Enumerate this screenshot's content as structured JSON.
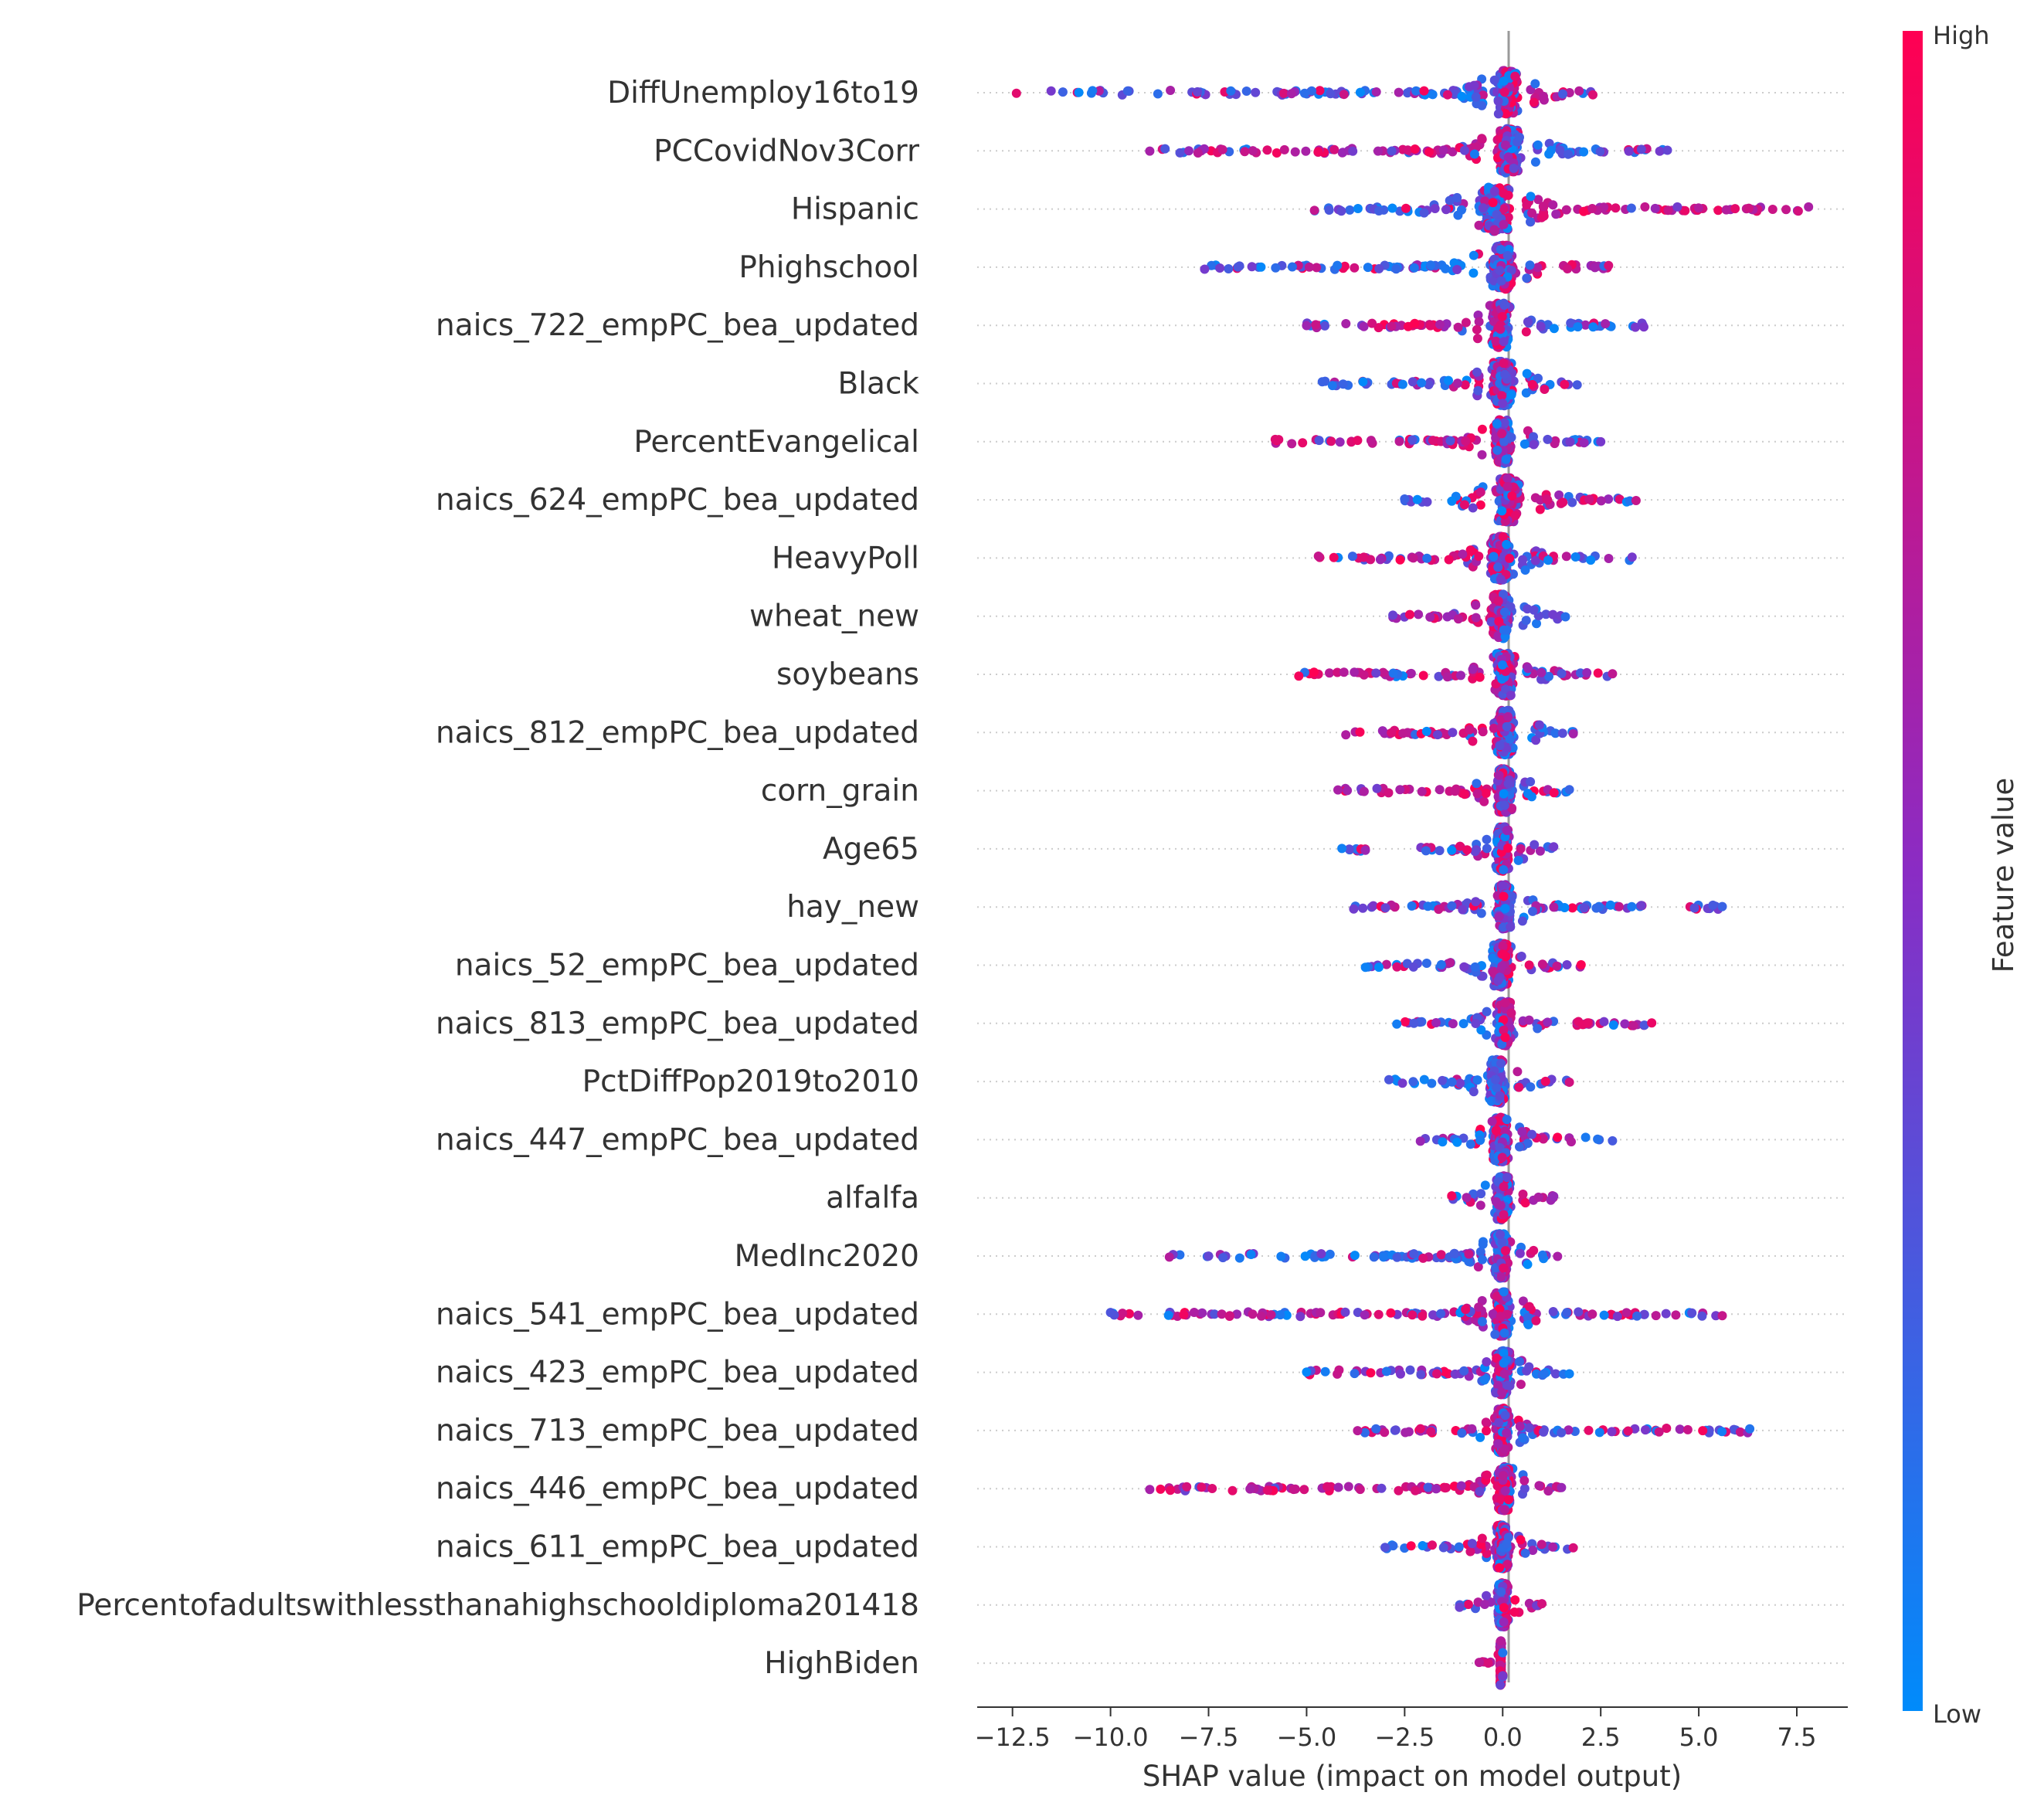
{
  "chart_data": {
    "type": "scatter",
    "subtype": "beeswarm",
    "xlabel": "SHAP value (impact on model output)",
    "xlim": [
      -13.4,
      8.8
    ],
    "xticks": [
      -12.5,
      -10.0,
      -7.5,
      -5.0,
      -2.5,
      0.0,
      2.5,
      5.0,
      7.5
    ],
    "xtick_labels": [
      "−12.5",
      "−10.0",
      "−7.5",
      "−5.0",
      "−2.5",
      "0.0",
      "2.5",
      "5.0",
      "7.5"
    ],
    "colorbar": {
      "label": "Feature value",
      "high_label": "High",
      "low_label": "Low",
      "high_color": "#ff0052",
      "mid_color": "#8a2cc4",
      "low_color": "#008bfb"
    },
    "features": [
      {
        "name": "DiffUnemploy16to19",
        "range": [
          -12.4,
          2.3
        ],
        "core": [
          -0.5,
          0.7
        ],
        "neg_bias": 0.15,
        "pos_bias": 0.75
      },
      {
        "name": "PCCovidNov3Corr",
        "range": [
          -9.0,
          4.2
        ],
        "core": [
          -0.5,
          0.8
        ],
        "neg_bias": 0.85,
        "pos_bias": 0.2
      },
      {
        "name": "Hispanic",
        "range": [
          -4.8,
          7.8
        ],
        "core": [
          -1.0,
          0.6
        ],
        "neg_bias": 0.15,
        "pos_bias": 0.85
      },
      {
        "name": "Phighschool",
        "range": [
          -7.6,
          2.7
        ],
        "core": [
          -0.6,
          0.6
        ],
        "neg_bias": 0.2,
        "pos_bias": 0.75
      },
      {
        "name": "naics_722_empPC_bea_updated",
        "range": [
          -5.0,
          3.6
        ],
        "core": [
          -0.6,
          0.5
        ],
        "neg_bias": 0.85,
        "pos_bias": 0.2
      },
      {
        "name": "Black",
        "range": [
          -4.6,
          1.9
        ],
        "core": [
          -0.6,
          0.6
        ],
        "neg_bias": 0.35,
        "pos_bias": 0.3
      },
      {
        "name": "PercentEvangelical",
        "range": [
          -5.8,
          2.5
        ],
        "core": [
          -0.5,
          0.5
        ],
        "neg_bias": 0.75,
        "pos_bias": 0.25
      },
      {
        "name": "naics_624_empPC_bea_updated",
        "range": [
          -2.5,
          3.4
        ],
        "core": [
          -0.5,
          0.8
        ],
        "neg_bias": 0.25,
        "pos_bias": 0.85
      },
      {
        "name": "HeavyPoll",
        "range": [
          -4.7,
          3.3
        ],
        "core": [
          -0.6,
          0.5
        ],
        "neg_bias": 0.65,
        "pos_bias": 0.25
      },
      {
        "name": "wheat_new",
        "range": [
          -2.8,
          1.6
        ],
        "core": [
          -0.6,
          0.5
        ],
        "neg_bias": 0.85,
        "pos_bias": 0.25
      },
      {
        "name": "soybeans",
        "range": [
          -5.2,
          2.8
        ],
        "core": [
          -0.5,
          0.6
        ],
        "neg_bias": 0.6,
        "pos_bias": 0.6
      },
      {
        "name": "naics_812_empPC_bea_updated",
        "range": [
          -4.0,
          1.8
        ],
        "core": [
          -0.5,
          0.6
        ],
        "neg_bias": 0.85,
        "pos_bias": 0.2
      },
      {
        "name": "corn_grain",
        "range": [
          -4.2,
          1.7
        ],
        "core": [
          -0.4,
          0.5
        ],
        "neg_bias": 0.9,
        "pos_bias": 0.3
      },
      {
        "name": "Age65",
        "range": [
          -4.1,
          1.3
        ],
        "core": [
          -0.4,
          0.4
        ],
        "neg_bias": 0.3,
        "pos_bias": 0.55
      },
      {
        "name": "hay_new",
        "range": [
          -3.8,
          5.6
        ],
        "core": [
          -0.4,
          0.5
        ],
        "neg_bias": 0.45,
        "pos_bias": 0.25
      },
      {
        "name": "naics_52_empPC_bea_updated",
        "range": [
          -3.5,
          2.0
        ],
        "core": [
          -0.5,
          0.4
        ],
        "neg_bias": 0.3,
        "pos_bias": 0.65
      },
      {
        "name": "naics_813_empPC_bea_updated",
        "range": [
          -2.7,
          3.8
        ],
        "core": [
          -0.4,
          0.5
        ],
        "neg_bias": 0.35,
        "pos_bias": 0.85
      },
      {
        "name": "PctDiffPop2019to2010",
        "range": [
          -2.9,
          1.7
        ],
        "core": [
          -0.6,
          0.3
        ],
        "neg_bias": 0.15,
        "pos_bias": 0.3
      },
      {
        "name": "naics_447_empPC_bea_updated",
        "range": [
          -2.1,
          2.8
        ],
        "core": [
          -0.5,
          0.4
        ],
        "neg_bias": 0.4,
        "pos_bias": 0.55
      },
      {
        "name": "alfalfa",
        "range": [
          -1.3,
          1.3
        ],
        "core": [
          -0.4,
          0.4
        ],
        "neg_bias": 0.2,
        "pos_bias": 0.7
      },
      {
        "name": "MedInc2020",
        "range": [
          -8.5,
          1.4
        ],
        "core": [
          -0.5,
          0.4
        ],
        "neg_bias": 0.15,
        "pos_bias": 0.65
      },
      {
        "name": "naics_541_empPC_bea_updated",
        "range": [
          -10.0,
          5.6
        ],
        "core": [
          -0.5,
          0.5
        ],
        "neg_bias": 0.8,
        "pos_bias": 0.35
      },
      {
        "name": "naics_423_empPC_bea_updated",
        "range": [
          -5.0,
          1.7
        ],
        "core": [
          -0.4,
          0.4
        ],
        "neg_bias": 0.7,
        "pos_bias": 0.4
      },
      {
        "name": "naics_713_empPC_bea_updated",
        "range": [
          -3.7,
          6.3
        ],
        "core": [
          -0.4,
          0.4
        ],
        "neg_bias": 0.75,
        "pos_bias": 0.45
      },
      {
        "name": "naics_446_empPC_bea_updated",
        "range": [
          -9.0,
          1.5
        ],
        "core": [
          -0.4,
          0.5
        ],
        "neg_bias": 0.85,
        "pos_bias": 0.7
      },
      {
        "name": "naics_611_empPC_bea_updated",
        "range": [
          -3.0,
          1.8
        ],
        "core": [
          -0.4,
          0.4
        ],
        "neg_bias": 0.5,
        "pos_bias": 0.45
      },
      {
        "name": "Percentofadultswithlessthanahighschooldiploma201418",
        "range": [
          -1.1,
          1.0
        ],
        "core": [
          -0.3,
          0.3
        ],
        "neg_bias": 0.4,
        "pos_bias": 0.8
      },
      {
        "name": "HighBiden",
        "range": [
          -0.6,
          0.0
        ],
        "core": [
          -0.1,
          0.0
        ],
        "neg_bias": 0.9,
        "pos_bias": 0.15
      }
    ]
  }
}
